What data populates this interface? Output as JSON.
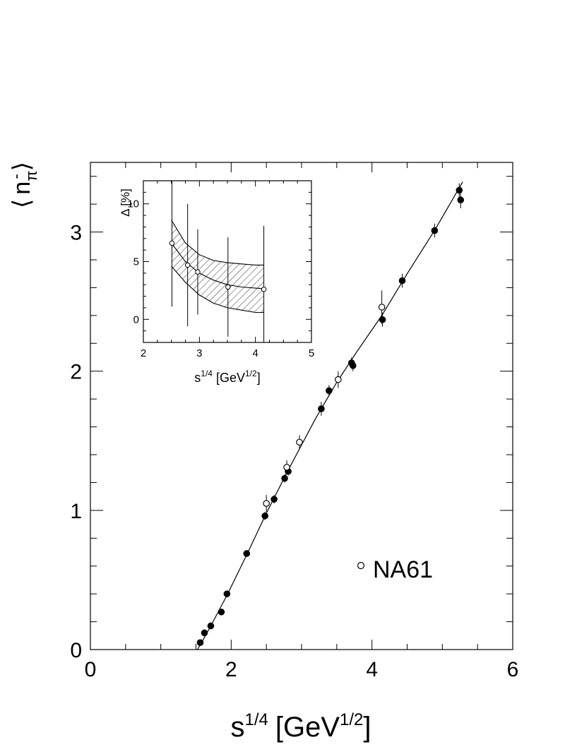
{
  "chart_data": [
    {
      "type": "scatter",
      "ylabel_parts": {
        "open": "⟨",
        "base": "n",
        "sub": "π",
        "sup": "-",
        "close": "⟩"
      },
      "xlabel_parts": {
        "base": "s",
        "sup": "1/4",
        "unit_open": "[GeV",
        "unit_sup": "1/2",
        "unit_close": "]"
      },
      "xlim": [
        0,
        6
      ],
      "ylim": [
        0,
        3.5
      ],
      "x_ticks": [
        "0",
        "2",
        "4",
        "6"
      ],
      "y_ticks": [
        "0",
        "1",
        "2",
        "3"
      ],
      "legend": {
        "label": "NA61",
        "marker": "open-circle",
        "position": "lower-right"
      },
      "series": [
        {
          "marker": "filled-circle",
          "points": [
            [
              1.56,
              0.05,
              0.02
            ],
            [
              1.62,
              0.12,
              0.02
            ],
            [
              1.71,
              0.17,
              0.02
            ],
            [
              1.86,
              0.27,
              0.02
            ],
            [
              1.94,
              0.4,
              0.02
            ],
            [
              2.22,
              0.69,
              0.02
            ],
            [
              2.48,
              0.96,
              0.03
            ],
            [
              2.61,
              1.08,
              0.03
            ],
            [
              2.76,
              1.23,
              0.03
            ],
            [
              2.81,
              1.28,
              0.03
            ],
            [
              3.28,
              1.73,
              0.05
            ],
            [
              3.39,
              1.86,
              0.04
            ],
            [
              3.71,
              2.06,
              0.04
            ],
            [
              3.73,
              2.04,
              0.04
            ],
            [
              4.15,
              2.37,
              0.05
            ],
            [
              4.43,
              2.65,
              0.05
            ],
            [
              4.89,
              3.01,
              0.05
            ],
            [
              5.24,
              3.3,
              0.05
            ],
            [
              5.26,
              3.23,
              0.06
            ]
          ]
        },
        {
          "name": "NA61",
          "marker": "open-circle",
          "points": [
            [
              2.5,
              1.05,
              0.06
            ],
            [
              2.79,
              1.31,
              0.05
            ],
            [
              2.97,
              1.49,
              0.05
            ],
            [
              3.52,
              1.94,
              0.06
            ],
            [
              4.14,
              2.46,
              0.12
            ]
          ]
        }
      ],
      "fit_curve": [
        [
          1.52,
          0.0
        ],
        [
          1.58,
          0.05
        ],
        [
          1.7,
          0.16
        ],
        [
          1.94,
          0.39
        ],
        [
          2.22,
          0.68
        ],
        [
          2.5,
          0.98
        ],
        [
          2.8,
          1.28
        ],
        [
          3.2,
          1.66
        ],
        [
          3.5,
          1.92
        ],
        [
          3.8,
          2.15
        ],
        [
          4.14,
          2.4
        ],
        [
          4.5,
          2.7
        ],
        [
          4.9,
          3.02
        ],
        [
          5.29,
          3.36
        ]
      ]
    },
    {
      "type": "scatter",
      "ylabel": "Δ [%]",
      "xlabel_parts": {
        "base": "s",
        "sup": "1/4",
        "unit_open": "[GeV",
        "unit_sup": "1/2",
        "unit_close": "]"
      },
      "xlim": [
        2,
        5
      ],
      "ylim": [
        -2,
        12
      ],
      "x_ticks": [
        "2",
        "3",
        "4",
        "5"
      ],
      "y_ticks": [
        "0",
        "5",
        "10"
      ],
      "points": [
        [
          2.51,
          6.6,
          5.5
        ],
        [
          2.79,
          4.7,
          5.3
        ],
        [
          2.97,
          4.1,
          3.7
        ],
        [
          3.51,
          2.8,
          4.3
        ],
        [
          4.15,
          2.6,
          5.5
        ]
      ],
      "band": {
        "x": [
          2.5,
          2.75,
          3.0,
          3.25,
          3.5,
          3.75,
          4.0,
          4.15
        ],
        "center": [
          6.6,
          5.0,
          4.0,
          3.4,
          3.0,
          2.8,
          2.7,
          2.65
        ],
        "upper": [
          8.6,
          6.6,
          5.6,
          5.1,
          4.9,
          4.8,
          4.7,
          4.7
        ],
        "lower": [
          4.6,
          3.2,
          2.1,
          1.4,
          1.0,
          0.8,
          0.6,
          0.6
        ]
      }
    }
  ]
}
